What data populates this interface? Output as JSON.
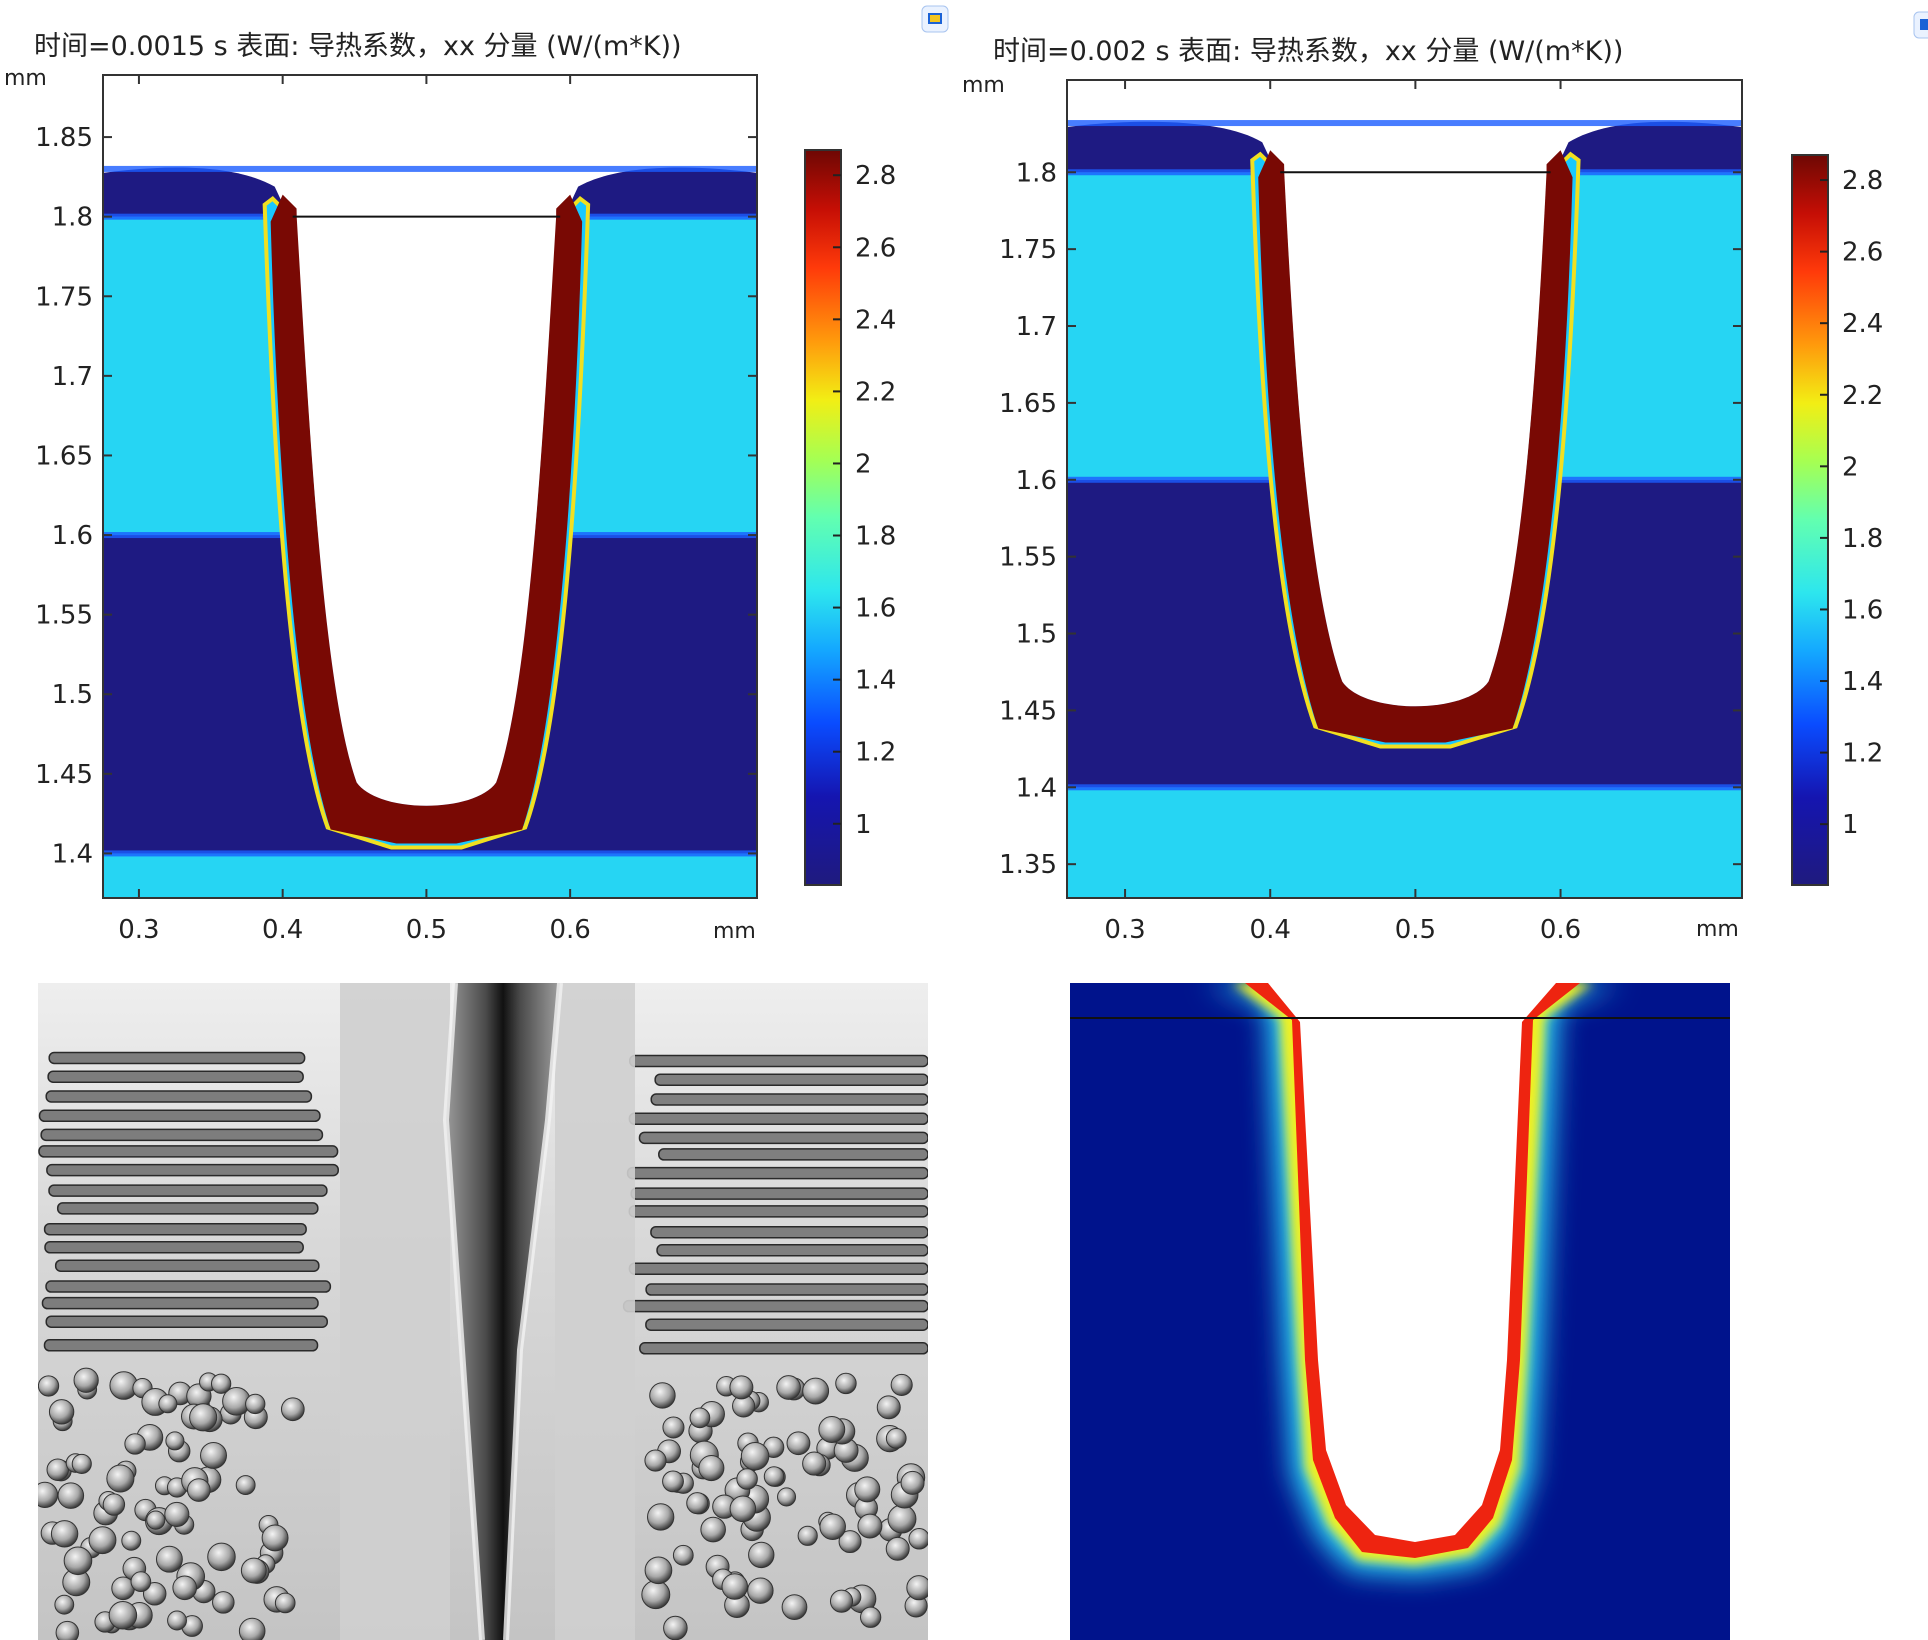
{
  "chart_data": [
    {
      "type": "heatmap",
      "title": "时间=0.0015 s   表面: 导热系数，xx 分量 (W/(m*K))",
      "x_unit": "mm",
      "y_unit": "mm",
      "xlim": [
        0.275,
        0.73
      ],
      "ylim": [
        1.372,
        1.889
      ],
      "x_ticks": [
        "0.3",
        "0.4",
        "0.5",
        "0.6"
      ],
      "y_ticks": [
        "1.4",
        "1.45",
        "1.5",
        "1.55",
        "1.6",
        "1.65",
        "1.7",
        "1.75",
        "1.8",
        "1.85"
      ],
      "colorbar_ticks": [
        "1",
        "1.2",
        "1.4",
        "1.6",
        "1.8",
        "2",
        "2.2",
        "2.4",
        "2.6",
        "2.8"
      ],
      "colorbar_range": [
        0.83,
        2.87
      ],
      "surface_y": 1.8,
      "groove_bottom_y": 1.41,
      "groove_half_width": 0.1,
      "layers": [
        {
          "ymin": 1.372,
          "ymax": 1.4,
          "value": 1.6
        },
        {
          "ymin": 1.4,
          "ymax": 1.6,
          "value": 0.85
        },
        {
          "ymin": 1.6,
          "ymax": 1.8,
          "value": 1.6
        },
        {
          "ymin": 1.8,
          "ymax": 1.83,
          "value": 0.85
        }
      ],
      "groove_wall_value": 2.85
    },
    {
      "type": "heatmap",
      "title": "时间=0.002 s   表面: 导热系数，xx 分量 (W/(m*K))",
      "x_unit": "mm",
      "y_unit": "mm",
      "xlim": [
        0.26,
        0.725
      ],
      "ylim": [
        1.328,
        1.86
      ],
      "x_ticks": [
        "0.3",
        "0.4",
        "0.5",
        "0.6"
      ],
      "y_ticks": [
        "1.35",
        "1.4",
        "1.45",
        "1.5",
        "1.55",
        "1.6",
        "1.65",
        "1.7",
        "1.75",
        "1.8"
      ],
      "colorbar_ticks": [
        "1",
        "1.2",
        "1.4",
        "1.6",
        "1.8",
        "2",
        "2.2",
        "2.4",
        "2.6",
        "2.8"
      ],
      "colorbar_range": [
        0.83,
        2.87
      ],
      "surface_y": 1.8,
      "groove_bottom_y": 1.433,
      "groove_half_width": 0.1,
      "layers": [
        {
          "ymin": 1.328,
          "ymax": 1.4,
          "value": 1.6
        },
        {
          "ymin": 1.4,
          "ymax": 1.6,
          "value": 0.85
        },
        {
          "ymin": 1.6,
          "ymax": 1.8,
          "value": 1.6
        },
        {
          "ymin": 1.8,
          "ymax": 1.832,
          "value": 0.85
        }
      ],
      "groove_wall_value": 2.85
    }
  ],
  "colors": {
    "navy": "#1a1a80",
    "cyan": "#4dffd2",
    "dark_red": "#7a0a02",
    "smooth_blue": "#00138c",
    "photo_gray": "#d9d9d9"
  },
  "photo": {
    "icon": "sem-micrograph-icon"
  },
  "smooth_plot": {
    "icon": "smooth-heatmap-icon"
  }
}
